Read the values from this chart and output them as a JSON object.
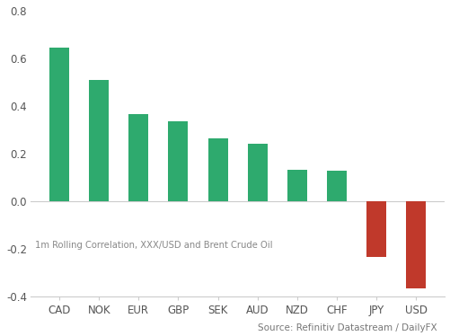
{
  "categories": [
    "CAD",
    "NOK",
    "EUR",
    "GBP",
    "SEK",
    "AUD",
    "NZD",
    "CHF",
    "JPY",
    "USD"
  ],
  "values": [
    0.645,
    0.51,
    0.365,
    0.335,
    0.265,
    0.24,
    0.132,
    0.127,
    -0.235,
    -0.365
  ],
  "bar_colors_pos": "#2eaa6e",
  "bar_colors_neg": "#c0392b",
  "ylim": [
    -0.4,
    0.8
  ],
  "yticks": [
    -0.4,
    -0.2,
    0.0,
    0.2,
    0.4,
    0.6,
    0.8
  ],
  "annotation": "1m Rolling Correlation, XXX/USD and Brent Crude Oil",
  "source_text": "Source: Refinitiv Datastream / DailyFX",
  "background_color": "#ffffff",
  "spine_color": "#cccccc",
  "tick_label_color": "#555555"
}
